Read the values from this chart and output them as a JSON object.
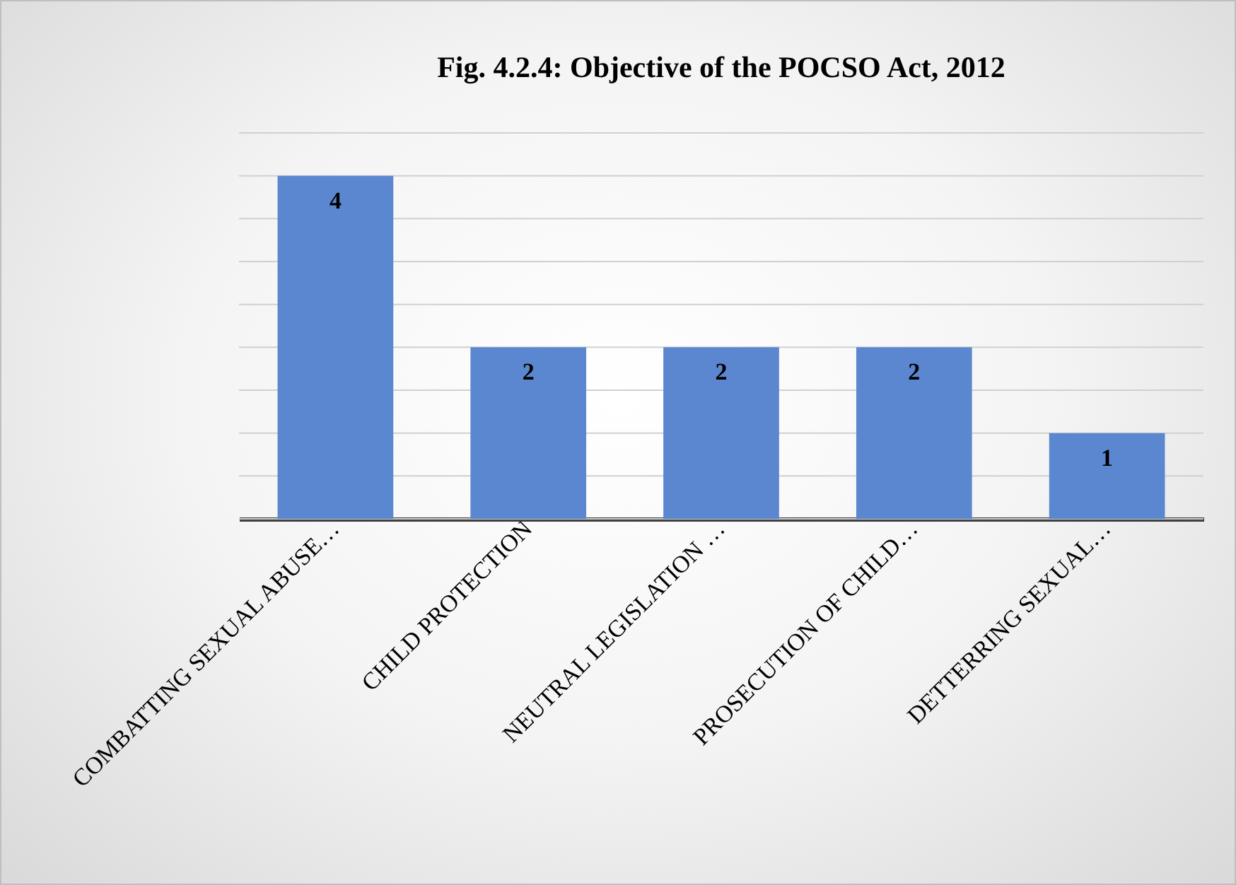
{
  "chart_data": {
    "type": "bar",
    "title": "Fig. 4.2.4: Objective of the POCSO Act, 2012",
    "categories": [
      "COMBATTING SEXUAL ABUSE…",
      "CHILD PROTECTION",
      "NEUTRAL LEGISLATION …",
      "PROSECUTION OF CHILD…",
      "DETTERRING SEXUAL…"
    ],
    "values": [
      4,
      2,
      2,
      2,
      1
    ],
    "color": "#5b87d0",
    "ylim": [
      0,
      4.5
    ],
    "yticks": [
      {
        "value": 0,
        "label": null
      },
      {
        "value": 0.5,
        "label": null
      },
      {
        "value": 1,
        "label": null
      },
      {
        "value": 1.5,
        "label": null
      },
      {
        "value": 2,
        "label": null
      },
      {
        "value": 2.5,
        "label": null
      },
      {
        "value": 3,
        "label": null
      },
      {
        "value": 3.5,
        "label": null
      },
      {
        "value": 4,
        "label": null
      },
      {
        "value": 4.5,
        "label": null
      }
    ],
    "grid": "y",
    "tick_labels": "x",
    "data_labels": true
  }
}
